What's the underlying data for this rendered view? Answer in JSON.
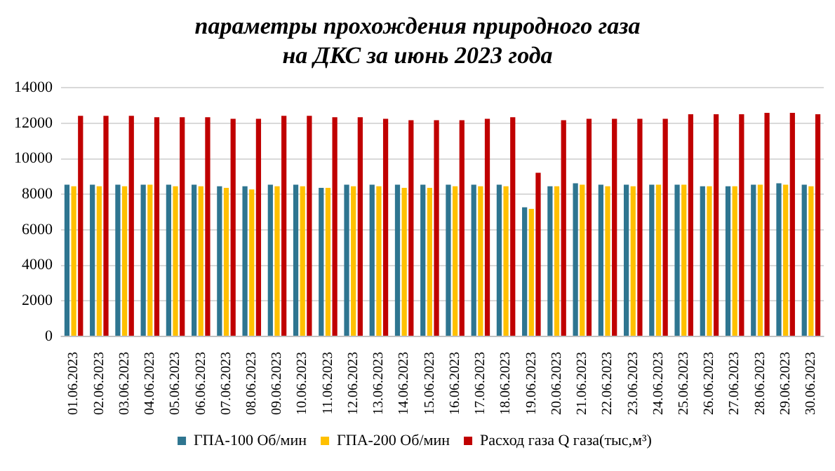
{
  "chart_data": {
    "type": "bar",
    "title": "параметры прохождения природного газа на ДКС за июнь 2023 года",
    "categories": [
      "01.06.2023",
      "02.06.2023",
      "03.06.2023",
      "04.06.2023",
      "05.06.2023",
      "06.06.2023",
      "07.06.2023",
      "08.06.2023",
      "09.06.2023",
      "10.06.2023",
      "11.06.2023",
      "12.06.2023",
      "13.06.2023",
      "14.06.2023",
      "15.06.2023",
      "16.06.2023",
      "17.06.2023",
      "18.06.2023",
      "19.06.2023",
      "20.06.2023",
      "21.06.2023",
      "22.06.2023",
      "23.06.2023",
      "24.06.2023",
      "25.06.2023",
      "26.06.2023",
      "27.06.2023",
      "28.06.2023",
      "29.06.2023",
      "30.06.2023"
    ],
    "series": [
      {
        "name": "ГПА-100 Об/мин",
        "color": "#2e7590",
        "values": [
          8540,
          8540,
          8540,
          8540,
          8540,
          8540,
          8450,
          8450,
          8540,
          8540,
          8370,
          8540,
          8540,
          8540,
          8540,
          8540,
          8540,
          8540,
          7270,
          8450,
          8620,
          8540,
          8540,
          8540,
          8540,
          8450,
          8450,
          8540,
          8620,
          8540
        ]
      },
      {
        "name": "ГПА-200 Об/мин",
        "color": "#ffc000",
        "values": [
          8450,
          8450,
          8450,
          8540,
          8450,
          8450,
          8370,
          8280,
          8450,
          8450,
          8370,
          8450,
          8450,
          8370,
          8370,
          8450,
          8450,
          8450,
          7180,
          8450,
          8540,
          8450,
          8450,
          8540,
          8540,
          8450,
          8450,
          8540,
          8540,
          8450
        ]
      },
      {
        "name": "Расход газа Q газа(тыс,м³)",
        "color": "#c00000",
        "values": [
          12420,
          12420,
          12420,
          12340,
          12340,
          12340,
          12250,
          12250,
          12420,
          12420,
          12340,
          12340,
          12250,
          12170,
          12170,
          12170,
          12250,
          12340,
          9210,
          12170,
          12250,
          12250,
          12250,
          12250,
          12510,
          12510,
          12510,
          12590,
          12590,
          12510
        ]
      }
    ],
    "ylim": [
      0,
      14000
    ],
    "yticks": [
      0,
      2000,
      4000,
      6000,
      8000,
      10000,
      12000,
      14000
    ],
    "grid": "y",
    "legend": "bottom"
  }
}
